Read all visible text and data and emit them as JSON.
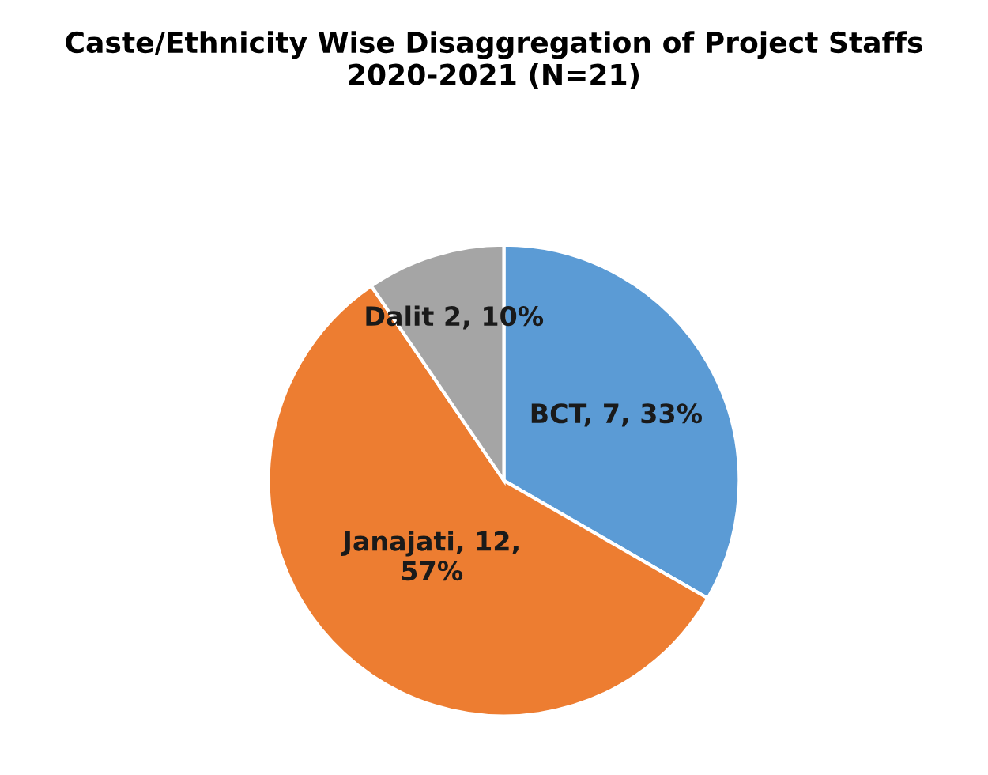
{
  "chart_data": {
    "type": "pie",
    "title": "Caste/Ethnicity Wise Disaggregation of Project Staffs\n2020-2021 (N=21)",
    "categories": [
      "BCT",
      "Janajati",
      "Dalit"
    ],
    "values": [
      7,
      12,
      2
    ],
    "colors": [
      "#5b9bd5",
      "#ed7d31",
      "#a5a5a5"
    ],
    "value_labels": [
      ", 7, 33%",
      ", 12,\n57%",
      " 2, 10%"
    ],
    "legend": false
  }
}
